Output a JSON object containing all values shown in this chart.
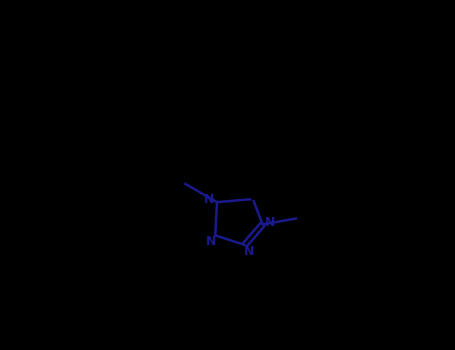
{
  "background_color": "#000000",
  "bond_color": "#000000",
  "ring_color": "#1a1a8c",
  "figsize": [
    4.55,
    3.5
  ],
  "dpi": 100,
  "ring_lw": 1.8,
  "bond_lw": 1.8,
  "label_color": "#1a1a8c",
  "label_fontsize": 8,
  "xlim": [
    0,
    10
  ],
  "ylim": [
    0,
    7.67
  ]
}
